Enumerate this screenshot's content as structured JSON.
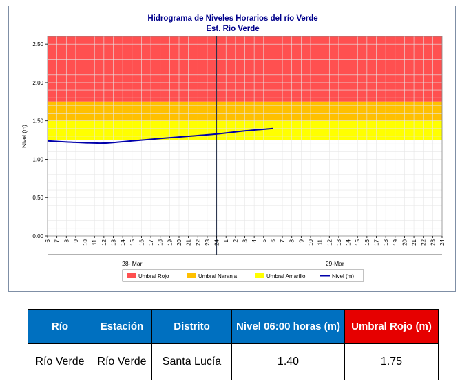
{
  "chart_data": {
    "type": "line",
    "title": "Hidrograma de Niveles Horarios del río Verde",
    "subtitle": "Est. Río Verde",
    "ylabel": "Nivel (m)",
    "xlabel": "",
    "ylim": [
      0,
      2.6
    ],
    "y_ticks": [
      "0.00",
      "0.50",
      "1.00",
      "1.50",
      "2.00",
      "2.50"
    ],
    "x_tick_labels": [
      "6",
      "7",
      "8",
      "9",
      "10",
      "11",
      "12",
      "13",
      "14",
      "15",
      "16",
      "17",
      "18",
      "19",
      "20",
      "21",
      "22",
      "23",
      "24",
      "1",
      "2",
      "3",
      "4",
      "5",
      "6",
      "7",
      "8",
      "9",
      "10",
      "11",
      "12",
      "13",
      "14",
      "15",
      "16",
      "17",
      "18",
      "19",
      "20",
      "21",
      "22",
      "23",
      "24"
    ],
    "dates": [
      "28- Mar",
      "29-Mar"
    ],
    "thresholds": [
      {
        "name": "Umbral Rojo",
        "from": 1.75,
        "to": 2.6,
        "color": "#ff5050"
      },
      {
        "name": "Umbral Naranja",
        "from": 1.5,
        "to": 1.75,
        "color": "#ffc000"
      },
      {
        "name": "Umbral Amarillo",
        "from": 1.25,
        "to": 1.5,
        "color": "#ffff00"
      }
    ],
    "series": [
      {
        "name": "Nivel (m)",
        "color": "#0000aa",
        "x": [
          0,
          3,
          6,
          9,
          12,
          15,
          18,
          21,
          24
        ],
        "y": [
          1.24,
          1.22,
          1.21,
          1.24,
          1.27,
          1.3,
          1.33,
          1.37,
          1.4
        ]
      }
    ],
    "separator_index": 18,
    "grid": true,
    "legend": "bottom"
  },
  "table": {
    "headers": [
      "Río",
      "Estación",
      "Distrito",
      "Nivel 06:00 horas (m)",
      "Umbral Rojo (m)"
    ],
    "row": [
      "Río Verde",
      "Río Verde",
      "Santa Lucía",
      "1.40",
      "1.75"
    ]
  }
}
